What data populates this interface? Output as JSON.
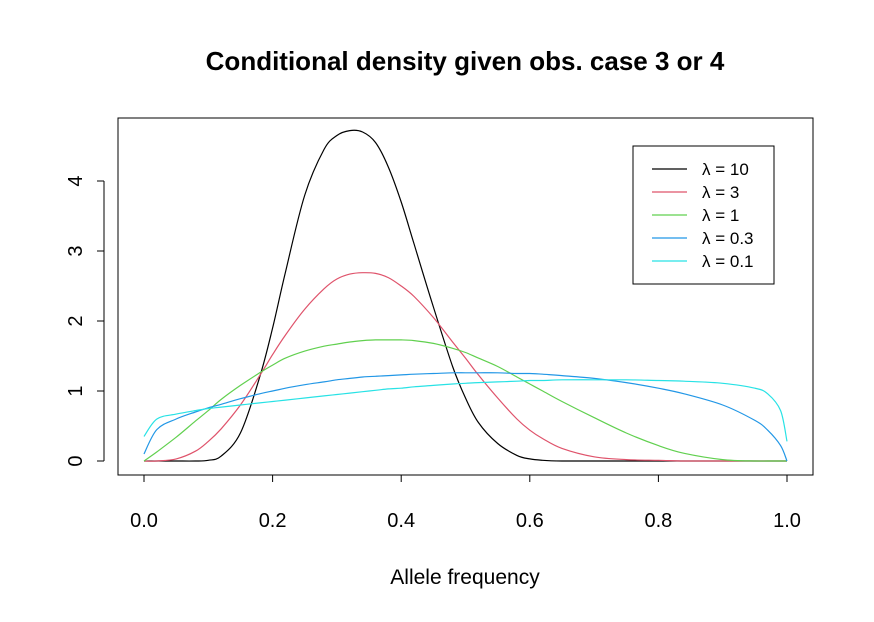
{
  "chart_data": {
    "type": "line",
    "title": "Conditional density given obs. case 3 or 4",
    "xlabel": "Allele frequency",
    "ylabel": "",
    "xlim": [
      0,
      1
    ],
    "ylim": [
      0,
      4.7
    ],
    "xticks": [
      "0.0",
      "0.2",
      "0.4",
      "0.6",
      "0.8",
      "1.0"
    ],
    "yticks": [
      "0",
      "1",
      "2",
      "3",
      "4"
    ],
    "legend_position": "top-right",
    "grid": false,
    "x": [
      0.0,
      0.02,
      0.05,
      0.08,
      0.1,
      0.12,
      0.15,
      0.18,
      0.2,
      0.22,
      0.25,
      0.28,
      0.3,
      0.32,
      0.34,
      0.36,
      0.38,
      0.4,
      0.42,
      0.45,
      0.48,
      0.5,
      0.52,
      0.55,
      0.58,
      0.6,
      0.62,
      0.65,
      0.7,
      0.75,
      0.8,
      0.84,
      0.9,
      0.95,
      0.97,
      0.99,
      1.0
    ],
    "series": [
      {
        "name": "λ = 10",
        "color": "#000000",
        "values": [
          0,
          0,
          0,
          0,
          0.01,
          0.07,
          0.4,
          1.2,
          1.9,
          2.7,
          3.8,
          4.45,
          4.65,
          4.72,
          4.7,
          4.55,
          4.2,
          3.7,
          3.1,
          2.2,
          1.35,
          0.9,
          0.55,
          0.25,
          0.08,
          0.03,
          0.01,
          0,
          0,
          0,
          0,
          0,
          0,
          0,
          0,
          0,
          0
        ]
      },
      {
        "name": "λ = 3",
        "color": "#DF536B",
        "values": [
          0,
          0,
          0.03,
          0.14,
          0.28,
          0.46,
          0.8,
          1.22,
          1.52,
          1.8,
          2.17,
          2.46,
          2.6,
          2.67,
          2.69,
          2.68,
          2.62,
          2.5,
          2.35,
          2.05,
          1.7,
          1.47,
          1.23,
          0.9,
          0.6,
          0.44,
          0.32,
          0.18,
          0.06,
          0.02,
          0.01,
          0,
          0,
          0,
          0,
          0,
          0
        ]
      },
      {
        "name": "λ = 1",
        "color": "#61D04F",
        "values": [
          0,
          0.13,
          0.34,
          0.57,
          0.72,
          0.88,
          1.08,
          1.26,
          1.37,
          1.47,
          1.57,
          1.64,
          1.67,
          1.7,
          1.72,
          1.73,
          1.73,
          1.73,
          1.72,
          1.68,
          1.61,
          1.55,
          1.47,
          1.35,
          1.2,
          1.1,
          1.0,
          0.85,
          0.62,
          0.4,
          0.22,
          0.11,
          0.02,
          0,
          0,
          0,
          0
        ]
      },
      {
        "name": "λ = 0.3",
        "color": "#2297E6",
        "values": [
          0.1,
          0.45,
          0.6,
          0.7,
          0.76,
          0.81,
          0.89,
          0.96,
          1.0,
          1.04,
          1.09,
          1.13,
          1.16,
          1.18,
          1.2,
          1.21,
          1.22,
          1.23,
          1.24,
          1.25,
          1.26,
          1.26,
          1.26,
          1.26,
          1.25,
          1.25,
          1.24,
          1.22,
          1.18,
          1.12,
          1.04,
          0.96,
          0.8,
          0.58,
          0.44,
          0.22,
          0.0
        ]
      },
      {
        "name": "λ = 0.1",
        "color": "#28E2E5",
        "values": [
          0.35,
          0.6,
          0.67,
          0.72,
          0.75,
          0.77,
          0.8,
          0.83,
          0.85,
          0.87,
          0.9,
          0.93,
          0.95,
          0.97,
          0.99,
          1.01,
          1.03,
          1.04,
          1.06,
          1.08,
          1.1,
          1.11,
          1.12,
          1.13,
          1.14,
          1.15,
          1.15,
          1.16,
          1.16,
          1.16,
          1.15,
          1.14,
          1.11,
          1.04,
          0.96,
          0.72,
          0.28
        ]
      }
    ]
  }
}
